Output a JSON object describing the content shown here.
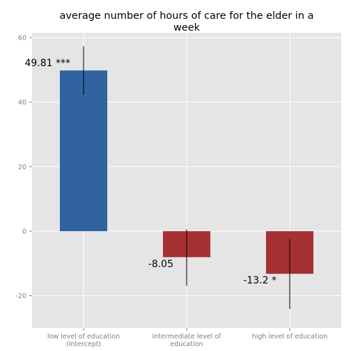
{
  "chart_data": {
    "type": "bar",
    "title": "average number of hours of care for the elder in a week",
    "title_lines": [
      "average number of hours of care for the elder in a",
      "week"
    ],
    "xlabel": "",
    "ylabel": "",
    "categories": [
      [
        "low level of education",
        "(Intercept)"
      ],
      [
        "intermediate level of",
        "education"
      ],
      [
        "high level of education"
      ]
    ],
    "values": [
      49.81,
      -8.05,
      -13.2
    ],
    "error_bars": [
      [
        42.3,
        57.3
      ],
      [
        -16.9,
        0.6
      ],
      [
        -24.1,
        -2.3
      ]
    ],
    "data_labels": [
      "49.81 ***",
      "-8.05",
      "-13.2 *"
    ],
    "bar_colors": [
      "#3063a0",
      "#a63034"
    ],
    "ylim": [
      -30,
      61.5
    ],
    "yticks": [
      -20,
      0,
      20,
      40,
      60
    ],
    "grid": true,
    "background": "#e5e5e5",
    "gridline_color": "#ffffff",
    "legend": "none"
  }
}
